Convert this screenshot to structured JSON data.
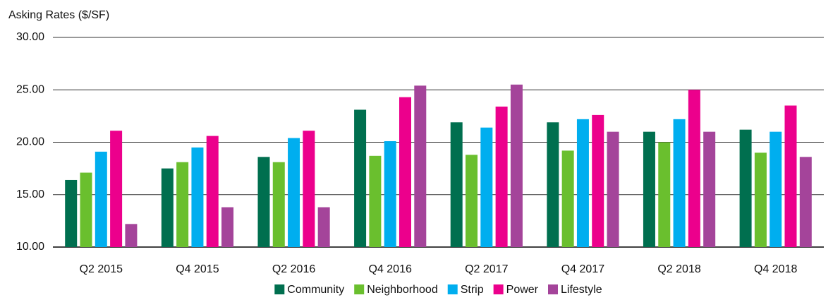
{
  "chart_data": {
    "type": "bar",
    "y_axis_label": "Asking Rates ($/SF)",
    "categories": [
      "Q2 2015",
      "Q4 2015",
      "Q2 2016",
      "Q4 2016",
      "Q2 2017",
      "Q4 2017",
      "Q2 2018",
      "Q4 2018"
    ],
    "series": [
      {
        "name": "Community",
        "color": "#006f4f",
        "values": [
          16.4,
          17.5,
          18.6,
          23.1,
          21.9,
          21.9,
          21.0,
          21.2
        ]
      },
      {
        "name": "Neighborhood",
        "color": "#6abf2e",
        "values": [
          17.1,
          18.1,
          18.1,
          18.7,
          18.8,
          19.2,
          20.0,
          19.0
        ]
      },
      {
        "name": "Strip",
        "color": "#00aeef",
        "values": [
          19.1,
          19.5,
          20.4,
          20.1,
          21.4,
          22.2,
          22.2,
          21.0
        ]
      },
      {
        "name": "Power",
        "color": "#ec008c",
        "values": [
          21.1,
          20.6,
          21.1,
          24.3,
          23.4,
          22.6,
          25.0,
          23.5
        ]
      },
      {
        "name": "Lifestyle",
        "color": "#a4449a",
        "values": [
          12.2,
          13.8,
          13.8,
          25.4,
          25.5,
          21.0,
          21.0,
          18.6
        ]
      }
    ],
    "ylim": [
      10,
      30
    ],
    "yticks": [
      {
        "value": 10,
        "label": "10.00"
      },
      {
        "value": 15,
        "label": "15.00"
      },
      {
        "value": 20,
        "label": "20.00"
      },
      {
        "value": 25,
        "label": "25.00"
      },
      {
        "value": 30,
        "label": "30.00"
      }
    ],
    "grid": true,
    "legend": "bottom"
  }
}
